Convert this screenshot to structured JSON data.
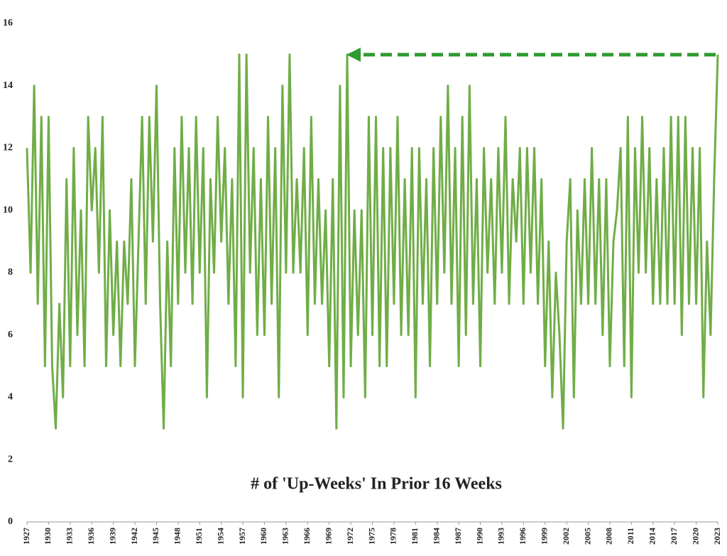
{
  "chart_data": {
    "type": "line",
    "title": "# of 'Up-Weeks' In Prior 16 Weeks",
    "x": [
      1927,
      1927.5,
      1928,
      1928.5,
      1929,
      1929.5,
      1930,
      1930.5,
      1931,
      1931.5,
      1932,
      1932.5,
      1933,
      1933.5,
      1934,
      1934.5,
      1935,
      1935.5,
      1936,
      1936.5,
      1937,
      1937.5,
      1938,
      1938.5,
      1939,
      1939.5,
      1940,
      1940.5,
      1941,
      1941.5,
      1942,
      1942.5,
      1943,
      1943.5,
      1944,
      1944.5,
      1945,
      1945.5,
      1946,
      1946.5,
      1947,
      1947.5,
      1948,
      1948.5,
      1949,
      1949.5,
      1950,
      1950.5,
      1951,
      1951.5,
      1952,
      1952.5,
      1953,
      1953.5,
      1954,
      1954.5,
      1955,
      1955.5,
      1956,
      1956.5,
      1957,
      1957.5,
      1958,
      1958.5,
      1959,
      1959.5,
      1960,
      1960.5,
      1961,
      1961.5,
      1962,
      1962.5,
      1963,
      1963.5,
      1964,
      1964.5,
      1965,
      1965.5,
      1966,
      1966.5,
      1967,
      1967.5,
      1968,
      1968.5,
      1969,
      1969.5,
      1970,
      1970.5,
      1971,
      1971.5,
      1972,
      1972.5,
      1973,
      1973.5,
      1974,
      1974.5,
      1975,
      1975.5,
      1976,
      1976.5,
      1977,
      1977.5,
      1978,
      1978.5,
      1979,
      1979.5,
      1980,
      1980.5,
      1981,
      1981.5,
      1982,
      1982.5,
      1983,
      1983.5,
      1984,
      1984.5,
      1985,
      1985.5,
      1986,
      1986.5,
      1987,
      1987.5,
      1988,
      1988.5,
      1989,
      1989.5,
      1990,
      1990.5,
      1991,
      1991.5,
      1992,
      1992.5,
      1993,
      1993.5,
      1994,
      1994.5,
      1995,
      1995.5,
      1996,
      1996.5,
      1997,
      1997.5,
      1998,
      1998.5,
      1999,
      1999.5,
      2000,
      2000.5,
      2001,
      2001.5,
      2002,
      2002.5,
      2003,
      2003.5,
      2004,
      2004.5,
      2005,
      2005.5,
      2006,
      2006.5,
      2007,
      2007.5,
      2008,
      2008.5,
      2009,
      2009.5,
      2010,
      2010.5,
      2011,
      2011.5,
      2012,
      2012.5,
      2013,
      2013.5,
      2014,
      2014.5,
      2015,
      2015.5,
      2016,
      2016.5,
      2017,
      2017.5,
      2018,
      2018.5,
      2019,
      2019.5,
      2020,
      2020.5,
      2021,
      2021.5,
      2022,
      2022.5,
      2023
    ],
    "series": [
      {
        "color": "#70ad47",
        "values": [
          12,
          8,
          14,
          7,
          13,
          5,
          13,
          5,
          3,
          7,
          4,
          11,
          5,
          12,
          6,
          10,
          5,
          13,
          10,
          12,
          8,
          13,
          5,
          10,
          6,
          9,
          5,
          9,
          7,
          11,
          5,
          9,
          13,
          7,
          13,
          9,
          14,
          7,
          3,
          9,
          5,
          12,
          7,
          13,
          8,
          12,
          7,
          13,
          8,
          12,
          4,
          11,
          8,
          13,
          9,
          12,
          7,
          11,
          5,
          15,
          4,
          15,
          8,
          12,
          6,
          11,
          6,
          13,
          7,
          12,
          4,
          14,
          8,
          15,
          8,
          11,
          8,
          12,
          6,
          13,
          7,
          11,
          7,
          10,
          5,
          11,
          3,
          14,
          4,
          15,
          5,
          10,
          6,
          10,
          4,
          13,
          6,
          13,
          5,
          12,
          5,
          12,
          7,
          13,
          6,
          11,
          6,
          12,
          4,
          12,
          7,
          11,
          5,
          12,
          7,
          13,
          8,
          14,
          7,
          12,
          5,
          13,
          6,
          14,
          7,
          11,
          5,
          12,
          8,
          11,
          7,
          12,
          8,
          13,
          7,
          11,
          9,
          12,
          7,
          12,
          8,
          12,
          7,
          11,
          5,
          9,
          4,
          8,
          6,
          3,
          9,
          11,
          4,
          10,
          7,
          11,
          7,
          12,
          7,
          11,
          6,
          11,
          5,
          9,
          10,
          12,
          5,
          13,
          4,
          12,
          8,
          13,
          8,
          12,
          7,
          11,
          7,
          12,
          7,
          13,
          7,
          13,
          6,
          13,
          7,
          12,
          7,
          12,
          4,
          9,
          6,
          11,
          15
        ]
      }
    ],
    "xlim": [
      1927,
      2023
    ],
    "xticks": [
      1927,
      1930,
      1933,
      1936,
      1939,
      1942,
      1945,
      1948,
      1951,
      1954,
      1957,
      1960,
      1963,
      1966,
      1969,
      1972,
      1975,
      1978,
      1981,
      1984,
      1987,
      1990,
      1993,
      1996,
      1999,
      2002,
      2005,
      2008,
      2011,
      2014,
      2017,
      2020,
      2023
    ],
    "ylim": [
      0,
      16
    ],
    "yticks": [
      0,
      2,
      4,
      6,
      8,
      10,
      12,
      14,
      16
    ],
    "grid": false
  }
}
